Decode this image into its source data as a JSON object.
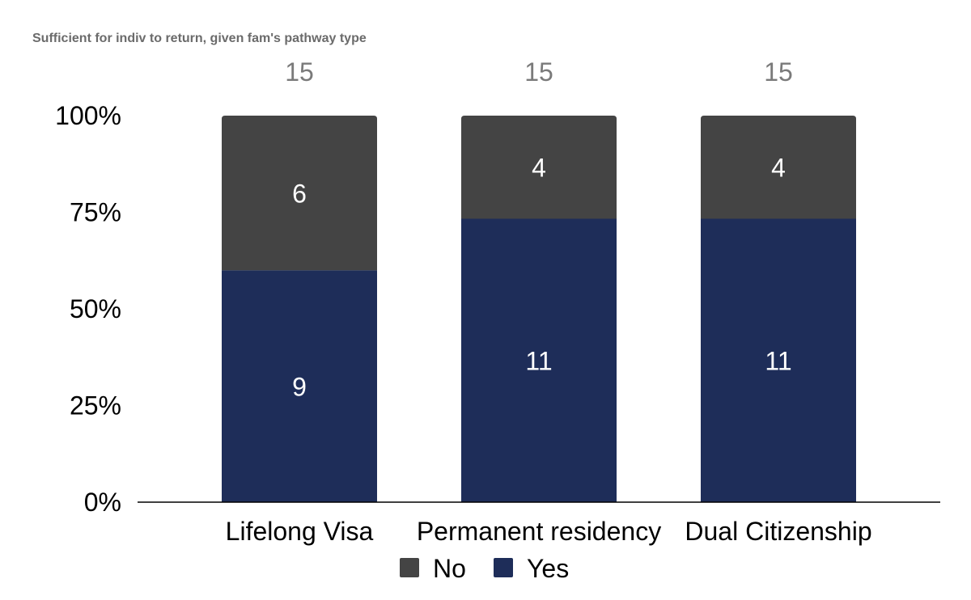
{
  "chart_data": {
    "type": "bar",
    "stacked": true,
    "normalized": true,
    "title": "Sufficient for indiv to return, given fam's pathway type",
    "categories": [
      "Lifelong Visa",
      "Permanent residency",
      "Dual Citizenship"
    ],
    "series": [
      {
        "name": "Yes",
        "values": [
          9,
          11,
          11
        ],
        "color": "#1e2d59"
      },
      {
        "name": "No",
        "values": [
          6,
          4,
          4
        ],
        "color": "#444444"
      }
    ],
    "totals": [
      15,
      15,
      15
    ],
    "yticks": [
      "0%",
      "25%",
      "50%",
      "75%",
      "100%"
    ],
    "ylim": [
      0,
      100
    ],
    "legend": {
      "position": "bottom",
      "order": [
        "No",
        "Yes"
      ]
    },
    "grid": false
  }
}
